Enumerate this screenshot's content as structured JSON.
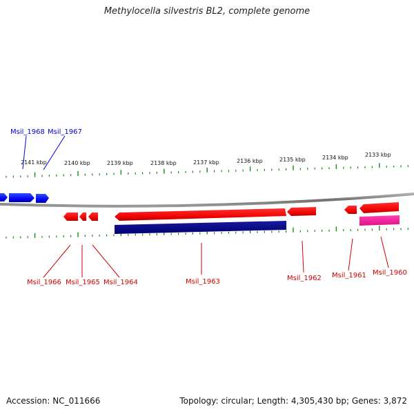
{
  "title": "Methylocella silvestris BL2, complete genome",
  "footer": {
    "accession": "Accession: NC_011666",
    "summary": "Topology: circular; Length: 4,305,430 bp; Genes: 3,872"
  },
  "colors": {
    "forward_gene": "#0000ff",
    "reverse_gene": "#ff0000",
    "reverse_gene_dark": "#cc0000",
    "navy_feature": "#00008b",
    "magenta_feature": "#ff1493",
    "tick": "#1a8a1a",
    "backbone": "#808080",
    "forward_label": "#0000cc",
    "reverse_label": "#cc0000"
  },
  "scale_labels": [
    "2141 kbp",
    "2140 kbp",
    "2139 kbp",
    "2138 kbp",
    "2137 kbp",
    "2136 kbp",
    "2135 kbp",
    "2134 kbp",
    "2133 kbp"
  ],
  "forward_gene_labels": [
    "Msil_1968",
    "Msil_1967"
  ],
  "reverse_gene_labels": [
    "Msil_1966",
    "Msil_1965",
    "Msil_1964",
    "Msil_1963",
    "Msil_1962",
    "Msil_1961",
    "Msil_1960"
  ]
}
